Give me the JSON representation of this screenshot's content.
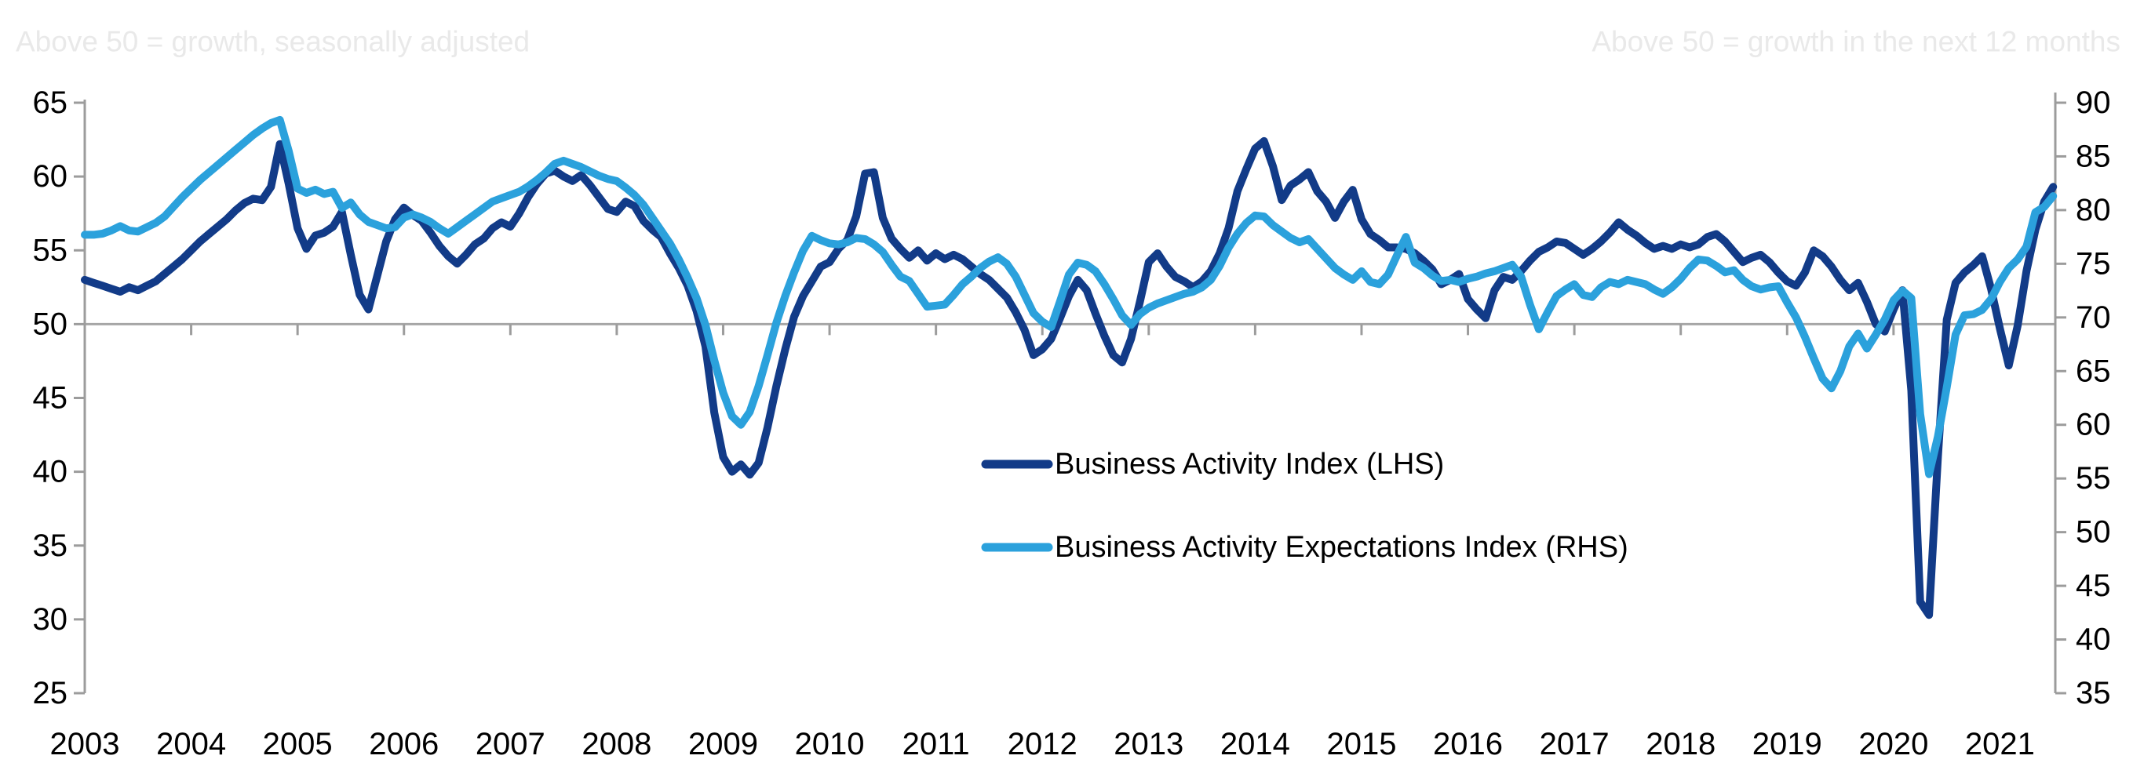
{
  "annotations": {
    "top_left": "Above 50 = growth, seasonally adjusted",
    "top_right": "Above 50 = growth in the next 12 months"
  },
  "legend": {
    "items": [
      {
        "label": "Business Activity Index (LHS)",
        "color": "#123b88"
      },
      {
        "label": "Business Activity Expectations Index (RHS)",
        "color": "#2ba1dc"
      }
    ]
  },
  "colors": {
    "axis": "#9c9c9c",
    "baseline": "#a6a6a6",
    "background": "#ffffff",
    "series_dark": "#123b88",
    "series_light": "#2ba1dc"
  },
  "chart_data": {
    "type": "line",
    "title": "",
    "x": {
      "start_year": 2003,
      "months_per_point": 1,
      "tick_labels": [
        "2003",
        "2004",
        "2005",
        "2006",
        "2007",
        "2008",
        "2009",
        "2010",
        "2011",
        "2012",
        "2013",
        "2014",
        "2015",
        "2016",
        "2017",
        "2018",
        "2019",
        "2020",
        "2021"
      ]
    },
    "left_axis": {
      "note": "Above 50 = growth, seasonally adjusted",
      "min": 25,
      "max": 65,
      "step": 5,
      "tick_labels": [
        "65",
        "60",
        "55",
        "50",
        "45",
        "40",
        "35",
        "30",
        "25"
      ]
    },
    "right_axis": {
      "note": "Above 50 = growth in the next 12 months",
      "min": 35,
      "max": 90,
      "step": 5,
      "tick_labels": [
        "90",
        "85",
        "80",
        "75",
        "70",
        "65",
        "60",
        "55",
        "50",
        "45",
        "40",
        "35"
      ]
    },
    "baseline": {
      "axis": "left",
      "value": 50
    },
    "legend_position": "center",
    "grid": false,
    "series": [
      {
        "name": "Business Activity Index (LHS)",
        "axis": "left",
        "color": "#123b88",
        "values": [
          53.0,
          52.8,
          52.6,
          52.4,
          52.2,
          52.5,
          52.3,
          52.6,
          52.9,
          53.4,
          53.9,
          54.4,
          55.0,
          55.6,
          56.1,
          56.6,
          57.1,
          57.7,
          58.2,
          58.5,
          58.4,
          59.3,
          62.2,
          59.5,
          56.5,
          55.1,
          56.0,
          56.2,
          56.6,
          57.6,
          54.7,
          52.0,
          51.0,
          53.3,
          55.6,
          57.1,
          57.9,
          57.4,
          57.0,
          56.2,
          55.3,
          54.6,
          54.1,
          54.7,
          55.4,
          55.8,
          56.5,
          56.9,
          56.6,
          57.5,
          58.6,
          59.5,
          60.2,
          60.4,
          60.0,
          59.7,
          60.1,
          59.4,
          58.6,
          57.8,
          57.6,
          58.3,
          58.0,
          57.0,
          56.4,
          55.9,
          54.8,
          53.8,
          52.6,
          50.9,
          48.5,
          44.0,
          41.0,
          40.0,
          40.5,
          39.8,
          40.6,
          43.0,
          45.8,
          48.3,
          50.5,
          51.9,
          52.9,
          53.9,
          54.2,
          55.1,
          55.7,
          57.3,
          60.2,
          60.3,
          57.2,
          55.8,
          55.1,
          54.5,
          55.0,
          54.3,
          54.8,
          54.4,
          54.7,
          54.4,
          53.9,
          53.4,
          53.0,
          52.4,
          51.8,
          50.8,
          49.6,
          47.9,
          48.3,
          49.0,
          50.4,
          51.9,
          53.0,
          52.3,
          50.7,
          49.2,
          47.9,
          47.4,
          49.0,
          51.5,
          54.2,
          54.8,
          53.9,
          53.2,
          52.9,
          52.5,
          52.9,
          53.6,
          54.8,
          56.5,
          59.0,
          60.5,
          61.9,
          62.4,
          60.7,
          58.4,
          59.4,
          59.8,
          60.3,
          59.0,
          58.3,
          57.2,
          58.3,
          59.1,
          57.1,
          56.1,
          55.7,
          55.2,
          55.2,
          55.1,
          54.8,
          54.3,
          53.7,
          52.7,
          53.0,
          53.4,
          51.7,
          51.0,
          50.4,
          52.3,
          53.2,
          53.0,
          53.6,
          54.3,
          54.9,
          55.2,
          55.6,
          55.5,
          55.1,
          54.7,
          55.1,
          55.6,
          56.2,
          56.9,
          56.4,
          56.0,
          55.5,
          55.1,
          55.3,
          55.1,
          55.4,
          55.2,
          55.4,
          55.9,
          56.1,
          55.6,
          54.9,
          54.2,
          54.5,
          54.7,
          54.2,
          53.5,
          52.9,
          52.6,
          53.5,
          55.0,
          54.6,
          53.9,
          53.0,
          52.3,
          52.8,
          51.5,
          50.0,
          49.5,
          51.0,
          52.3,
          45.5,
          31.2,
          30.3,
          41.0,
          50.3,
          52.8,
          53.5,
          54.0,
          54.6,
          52.4,
          49.7,
          47.2,
          49.9,
          53.6,
          56.4,
          58.3,
          59.3
        ]
      },
      {
        "name": "Business Activity Expectations Index (RHS)",
        "axis": "right",
        "color": "#2ba1dc",
        "values": [
          77.7,
          77.7,
          77.8,
          78.1,
          78.5,
          78.1,
          78.0,
          78.4,
          78.8,
          79.4,
          80.3,
          81.2,
          82.0,
          82.8,
          83.5,
          84.2,
          84.9,
          85.6,
          86.3,
          87.0,
          87.6,
          88.1,
          88.4,
          85.5,
          82.0,
          81.6,
          81.9,
          81.5,
          81.7,
          80.2,
          80.7,
          79.6,
          78.9,
          78.6,
          78.3,
          78.4,
          79.3,
          79.6,
          79.3,
          78.9,
          78.3,
          77.8,
          78.4,
          79.0,
          79.6,
          80.2,
          80.8,
          81.1,
          81.4,
          81.7,
          82.2,
          82.8,
          83.5,
          84.3,
          84.6,
          84.3,
          84.0,
          83.6,
          83.2,
          82.9,
          82.7,
          82.1,
          81.4,
          80.5,
          79.3,
          78.1,
          76.9,
          75.4,
          73.7,
          71.8,
          69.3,
          66.0,
          63.0,
          60.8,
          60.0,
          61.2,
          63.6,
          66.5,
          69.5,
          72.0,
          74.2,
          76.2,
          77.6,
          77.2,
          76.9,
          76.8,
          77.0,
          77.4,
          77.3,
          76.8,
          76.1,
          74.9,
          73.8,
          73.4,
          72.2,
          71.0,
          71.1,
          71.2,
          72.1,
          73.1,
          73.8,
          74.6,
          75.2,
          75.6,
          75.0,
          73.8,
          72.1,
          70.4,
          69.6,
          69.1,
          71.5,
          74.0,
          75.1,
          74.9,
          74.3,
          73.1,
          71.7,
          70.2,
          69.3,
          70.3,
          70.9,
          71.3,
          71.6,
          71.9,
          72.2,
          72.4,
          72.8,
          73.5,
          74.8,
          76.5,
          77.8,
          78.8,
          79.5,
          79.4,
          78.6,
          78.0,
          77.4,
          77.0,
          77.3,
          76.4,
          75.5,
          74.6,
          74.0,
          73.5,
          74.3,
          73.3,
          73.1,
          74.0,
          75.8,
          77.5,
          75.1,
          74.6,
          73.9,
          73.4,
          73.5,
          73.3,
          73.6,
          73.8,
          74.1,
          74.3,
          74.6,
          74.9,
          73.8,
          71.2,
          68.9,
          70.5,
          72.0,
          72.6,
          73.1,
          72.1,
          71.9,
          72.8,
          73.3,
          73.1,
          73.5,
          73.3,
          73.1,
          72.6,
          72.2,
          72.8,
          73.6,
          74.6,
          75.4,
          75.3,
          74.8,
          74.2,
          74.4,
          73.5,
          72.9,
          72.6,
          72.8,
          72.9,
          71.4,
          70.0,
          68.2,
          66.2,
          64.3,
          63.4,
          65.0,
          67.3,
          68.5,
          67.1,
          68.4,
          69.8,
          71.6,
          72.5,
          71.8,
          61.0,
          55.4,
          58.9,
          63.5,
          68.4,
          70.2,
          70.3,
          70.7,
          71.7,
          73.3,
          74.6,
          75.4,
          76.6,
          79.8,
          80.3,
          81.3
        ]
      }
    ]
  }
}
